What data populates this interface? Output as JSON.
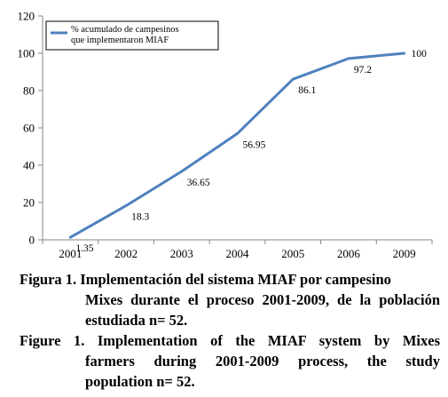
{
  "chart_data": {
    "type": "line",
    "categories": [
      "2001",
      "2002",
      "2003",
      "2004",
      "2005",
      "2006",
      "2009"
    ],
    "series": [
      {
        "name": "% acumulado de campesinos que implementaron MIAF",
        "values": [
          1.35,
          18.3,
          36.65,
          56.95,
          86.1,
          97.2,
          100
        ],
        "data_labels": [
          "1.35",
          "18.3",
          "36.65",
          "56.95",
          "86.1",
          "97.2",
          "100"
        ],
        "color": "#4f81bd"
      }
    ],
    "legend_lines": [
      "% acumulado de campesinos",
      "que implementaron MIAF"
    ],
    "y_ticks": [
      "0",
      "20",
      "40",
      "60",
      "80",
      "100",
      "120"
    ],
    "ylim": [
      0,
      120
    ],
    "grid": false,
    "legend_position": "top-left"
  },
  "caption": {
    "es_line1": "Figura 1. Implementación del sistema MIAF por campesino",
    "es_line2": "Mixes durante el proceso 2001-2009, de la población",
    "es_line3": "estudiada n= 52.",
    "en_line1": "Figure 1. Implementation of the MIAF system by Mixes",
    "en_line2": "farmers during 2001-2009 process, the study",
    "en_line3": "population n= 52."
  }
}
